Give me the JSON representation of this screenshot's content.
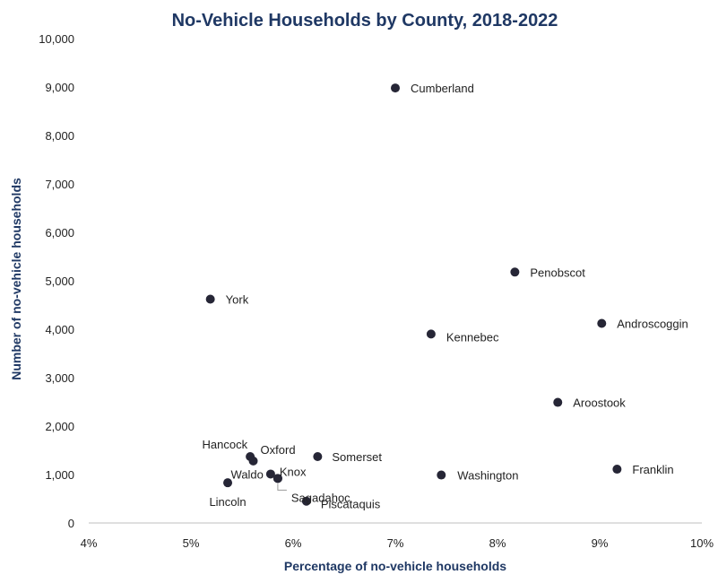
{
  "chart_data": {
    "type": "scatter",
    "title": "No-Vehicle Households by County, 2018-2022",
    "xlabel": "Percentage of no-vehicle households",
    "ylabel": "Number of no-vehicle households",
    "xlim": [
      4,
      10
    ],
    "ylim": [
      0,
      10000
    ],
    "grid": false,
    "x_ticks": [
      "4%",
      "5%",
      "6%",
      "7%",
      "8%",
      "9%",
      "10%"
    ],
    "y_ticks": [
      "0",
      "1,000",
      "2,000",
      "3,000",
      "4,000",
      "5,000",
      "6,000",
      "7,000",
      "8,000",
      "9,000",
      "10,000"
    ],
    "marker_color": "#262636",
    "points": [
      {
        "label": "Cumberland",
        "x": 7.0,
        "y": 8980
      },
      {
        "label": "Penobscot",
        "x": 8.17,
        "y": 5180
      },
      {
        "label": "York",
        "x": 5.19,
        "y": 4620
      },
      {
        "label": "Androscoggin",
        "x": 9.02,
        "y": 4120
      },
      {
        "label": "Kennebec",
        "x": 7.35,
        "y": 3900
      },
      {
        "label": "Aroostook",
        "x": 8.59,
        "y": 2490
      },
      {
        "label": "Hancock",
        "x": 5.58,
        "y": 1370
      },
      {
        "label": "Oxford",
        "x": 5.61,
        "y": 1280
      },
      {
        "label": "Somerset",
        "x": 6.24,
        "y": 1370
      },
      {
        "label": "Franklin",
        "x": 9.17,
        "y": 1110
      },
      {
        "label": "Washington",
        "x": 7.45,
        "y": 990
      },
      {
        "label": "Waldo",
        "x": 5.78,
        "y": 1010
      },
      {
        "label": "Knox",
        "x": 5.85,
        "y": 920
      },
      {
        "label": "Lincoln",
        "x": 5.36,
        "y": 830
      },
      {
        "label": "Sagadahoc",
        "x": 5.85,
        "y": 920
      },
      {
        "label": "Piscataquis",
        "x": 6.13,
        "y": 450
      }
    ]
  }
}
